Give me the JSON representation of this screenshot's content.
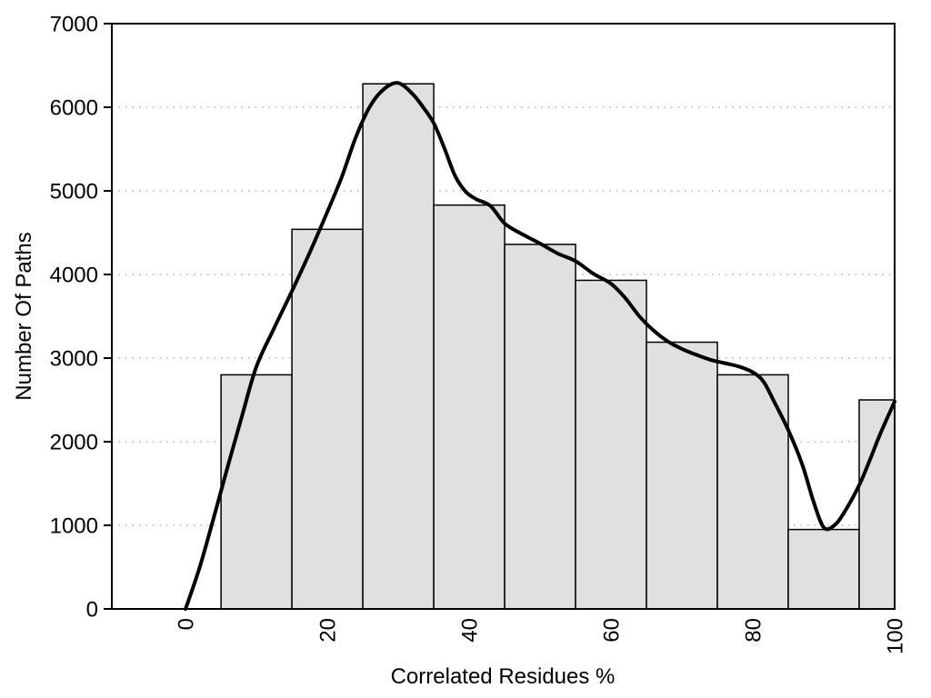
{
  "chart_data": {
    "type": "bar",
    "subtype": "histogram-with-smoothed-curve",
    "title": "",
    "xlabel": "Correlated Residues %",
    "ylabel": "Number Of Paths",
    "xlim": [
      -10.4,
      100
    ],
    "ylim": [
      0,
      7000
    ],
    "x_ticks": [
      0,
      20,
      40,
      60,
      80,
      100
    ],
    "y_ticks": [
      0,
      1000,
      2000,
      3000,
      4000,
      5000,
      6000,
      7000
    ],
    "x_tick_rotation_deg": -90,
    "grid": {
      "horizontal": true,
      "vertical": false,
      "style": "dotted"
    },
    "legend": "none",
    "bars": {
      "bin_edges": [
        5,
        15,
        25,
        35,
        45,
        55,
        65,
        75,
        85,
        95,
        100
      ],
      "values": [
        2800,
        4540,
        6280,
        4830,
        4360,
        3930,
        3190,
        2800,
        950,
        2500
      ]
    },
    "curve": {
      "name": "smoothed-trend",
      "points": [
        [
          0,
          0
        ],
        [
          2,
          500
        ],
        [
          4,
          1100
        ],
        [
          6,
          1720
        ],
        [
          8,
          2320
        ],
        [
          10,
          2900
        ],
        [
          12.5,
          3360
        ],
        [
          15,
          3800
        ],
        [
          17.5,
          4260
        ],
        [
          20,
          4750
        ],
        [
          22,
          5160
        ],
        [
          24,
          5640
        ],
        [
          26,
          6010
        ],
        [
          28,
          6220
        ],
        [
          30,
          6290
        ],
        [
          32,
          6160
        ],
        [
          33.5,
          6000
        ],
        [
          35,
          5810
        ],
        [
          36.5,
          5510
        ],
        [
          38,
          5180
        ],
        [
          39.5,
          4990
        ],
        [
          41,
          4900
        ],
        [
          43,
          4820
        ],
        [
          45,
          4610
        ],
        [
          47.5,
          4480
        ],
        [
          50,
          4370
        ],
        [
          52.5,
          4250
        ],
        [
          55,
          4160
        ],
        [
          57.5,
          4010
        ],
        [
          60,
          3890
        ],
        [
          62,
          3720
        ],
        [
          64,
          3500
        ],
        [
          66,
          3330
        ],
        [
          68,
          3200
        ],
        [
          70,
          3110
        ],
        [
          72,
          3040
        ],
        [
          74,
          2980
        ],
        [
          76,
          2940
        ],
        [
          78,
          2900
        ],
        [
          80,
          2830
        ],
        [
          81.5,
          2720
        ],
        [
          83,
          2480
        ],
        [
          85,
          2140
        ],
        [
          87,
          1720
        ],
        [
          88.5,
          1300
        ],
        [
          90,
          975
        ],
        [
          91.5,
          1000
        ],
        [
          93,
          1170
        ],
        [
          95,
          1480
        ],
        [
          96.5,
          1780
        ],
        [
          98,
          2100
        ],
        [
          100,
          2480
        ]
      ]
    },
    "colors": {
      "bar_fill": "#e0e0e0",
      "bar_stroke": "#000000",
      "curve": "#000000",
      "grid": "#b3b3b3",
      "frame": "#000000",
      "text": "#000000",
      "background": "#ffffff"
    }
  }
}
